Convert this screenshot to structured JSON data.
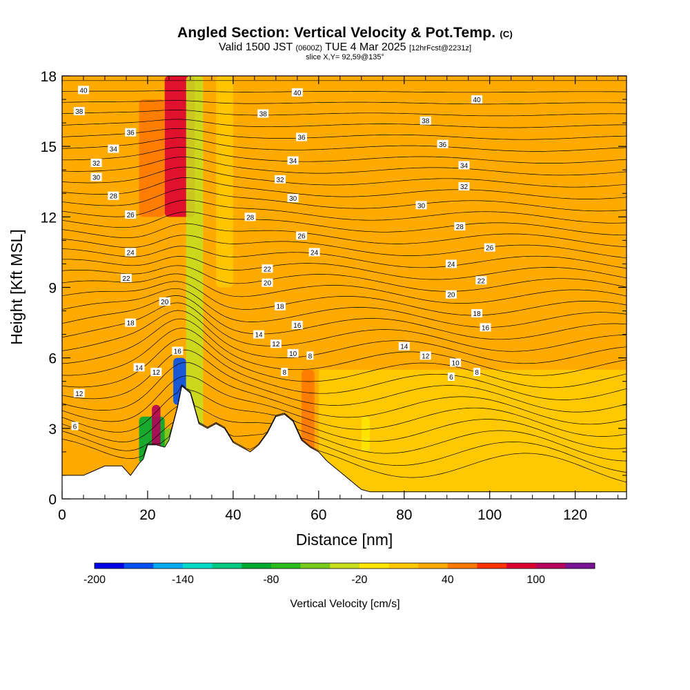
{
  "title": {
    "main": "Angled Section: Vertical Velocity & Pot.Temp.",
    "main_unit": "(C)",
    "valid_a": "Valid 1500 JST",
    "valid_b": "(0600Z)",
    "valid_c": "TUE 4 Mar 2025",
    "valid_d": "[12hrFcst@2231z]",
    "slice": "slice X,Y= 92,59@135°"
  },
  "chart_data": {
    "type": "heatmap",
    "xlabel": "Distance [nm]",
    "ylabel": "Height [Kft MSL]",
    "xlim": [
      0,
      132
    ],
    "ylim": [
      0,
      18
    ],
    "x_ticks": [
      "0",
      "20",
      "40",
      "60",
      "80",
      "100",
      "120"
    ],
    "y_ticks": [
      "0",
      "3",
      "6",
      "9",
      "12",
      "15",
      "18"
    ],
    "terrain": [
      [
        0,
        1.0
      ],
      [
        5,
        1.0
      ],
      [
        10,
        1.4
      ],
      [
        14,
        1.4
      ],
      [
        16,
        1.0
      ],
      [
        18,
        1.5
      ],
      [
        19,
        1.7
      ],
      [
        20,
        2.3
      ],
      [
        22,
        2.3
      ],
      [
        24,
        2.2
      ],
      [
        25,
        2.5
      ],
      [
        27,
        3.9
      ],
      [
        28,
        4.8
      ],
      [
        30,
        4.5
      ],
      [
        32,
        3.2
      ],
      [
        34,
        3.0
      ],
      [
        36,
        3.2
      ],
      [
        38,
        3.0
      ],
      [
        40,
        2.4
      ],
      [
        42,
        2.2
      ],
      [
        44,
        2.0
      ],
      [
        46,
        2.3
      ],
      [
        48,
        2.8
      ],
      [
        50,
        3.5
      ],
      [
        52,
        3.6
      ],
      [
        54,
        3.3
      ],
      [
        56,
        2.5
      ],
      [
        58,
        2.2
      ],
      [
        60,
        2.0
      ],
      [
        62,
        1.6
      ],
      [
        64,
        1.3
      ],
      [
        66,
        1.0
      ],
      [
        68,
        0.7
      ],
      [
        70,
        0.4
      ],
      [
        72,
        0.3
      ],
      [
        132,
        0.3
      ]
    ],
    "velocity_cells": [
      {
        "x0": 18,
        "x1": 24,
        "z0": 1.5,
        "z1": 3.5,
        "v": -100
      },
      {
        "x0": 24,
        "x1": 26,
        "z0": 1.5,
        "z1": 3.0,
        "v": -60
      },
      {
        "x0": 21,
        "x1": 23,
        "z0": 2.0,
        "z1": 4.0,
        "v": 110
      },
      {
        "x0": 26,
        "x1": 29,
        "z0": 4.0,
        "z1": 6.0,
        "v": -180
      },
      {
        "x0": 24,
        "x1": 31,
        "z0": 12,
        "z1": 18,
        "v": 80
      },
      {
        "x0": 18,
        "x1": 24,
        "z0": 12,
        "z1": 17,
        "v": 50
      },
      {
        "x0": 29,
        "x1": 33,
        "z0": 3,
        "z1": 18,
        "v": -30
      },
      {
        "x0": 56,
        "x1": 59,
        "z0": 2,
        "z1": 5.5,
        "v": 50
      },
      {
        "x0": 70,
        "x1": 72,
        "z0": 2,
        "z1": 3.5,
        "v": -20
      },
      {
        "x0": 36,
        "x1": 40,
        "z0": 9,
        "z1": 18,
        "v": 0
      }
    ],
    "velocity_levels": [
      -200,
      -180,
      -160,
      -140,
      -120,
      -100,
      -80,
      -60,
      -40,
      -20,
      0,
      20,
      40,
      60,
      80,
      100,
      120
    ],
    "colors": [
      "#0000e6",
      "#0050f0",
      "#00aaf5",
      "#00d8c8",
      "#00c882",
      "#00a832",
      "#2bbb1f",
      "#78c81e",
      "#c8dc1e",
      "#ffe600",
      "#ffc800",
      "#ffaa00",
      "#ff7800",
      "#ff3200",
      "#dc0032",
      "#b4005a",
      "#7a1496"
    ],
    "colorbar_ticks": [
      "-200",
      "-140",
      "-80",
      "-20",
      "40",
      "100"
    ],
    "colorbar_label": "Vertical Velocity [cm/s]",
    "theta_labels": [
      {
        "text": "40",
        "x": 5,
        "z": 17.4
      },
      {
        "text": "38",
        "x": 4,
        "z": 16.5
      },
      {
        "text": "36",
        "x": 16,
        "z": 15.6
      },
      {
        "text": "34",
        "x": 12,
        "z": 14.9
      },
      {
        "text": "32",
        "x": 8,
        "z": 14.3
      },
      {
        "text": "30",
        "x": 8,
        "z": 13.7
      },
      {
        "text": "28",
        "x": 12,
        "z": 12.9
      },
      {
        "text": "26",
        "x": 16,
        "z": 12.1
      },
      {
        "text": "24",
        "x": 16,
        "z": 10.5
      },
      {
        "text": "22",
        "x": 15,
        "z": 9.4
      },
      {
        "text": "20",
        "x": 24,
        "z": 8.4
      },
      {
        "text": "18",
        "x": 16,
        "z": 7.5
      },
      {
        "text": "16",
        "x": 27,
        "z": 6.3
      },
      {
        "text": "14",
        "x": 18,
        "z": 5.6
      },
      {
        "text": "12",
        "x": 22,
        "z": 5.4
      },
      {
        "text": "12",
        "x": 4,
        "z": 4.5
      },
      {
        "text": "6",
        "x": 3,
        "z": 3.1
      },
      {
        "text": "40",
        "x": 55,
        "z": 17.3
      },
      {
        "text": "38",
        "x": 47,
        "z": 16.4
      },
      {
        "text": "36",
        "x": 56,
        "z": 15.4
      },
      {
        "text": "34",
        "x": 54,
        "z": 14.4
      },
      {
        "text": "32",
        "x": 51,
        "z": 13.6
      },
      {
        "text": "30",
        "x": 54,
        "z": 12.8
      },
      {
        "text": "28",
        "x": 44,
        "z": 12.0
      },
      {
        "text": "26",
        "x": 56,
        "z": 11.2
      },
      {
        "text": "24",
        "x": 59,
        "z": 10.5
      },
      {
        "text": "22",
        "x": 48,
        "z": 9.8
      },
      {
        "text": "20",
        "x": 48,
        "z": 9.2
      },
      {
        "text": "18",
        "x": 51,
        "z": 8.2
      },
      {
        "text": "16",
        "x": 55,
        "z": 7.4
      },
      {
        "text": "14",
        "x": 46,
        "z": 7.0
      },
      {
        "text": "12",
        "x": 50,
        "z": 6.6
      },
      {
        "text": "10",
        "x": 54,
        "z": 6.2
      },
      {
        "text": "8",
        "x": 58,
        "z": 6.1
      },
      {
        "text": "8",
        "x": 52,
        "z": 5.4
      },
      {
        "text": "40",
        "x": 97,
        "z": 17.0
      },
      {
        "text": "38",
        "x": 85,
        "z": 16.1
      },
      {
        "text": "36",
        "x": 89,
        "z": 15.1
      },
      {
        "text": "34",
        "x": 94,
        "z": 14.2
      },
      {
        "text": "32",
        "x": 94,
        "z": 13.3
      },
      {
        "text": "30",
        "x": 84,
        "z": 12.5
      },
      {
        "text": "28",
        "x": 93,
        "z": 11.6
      },
      {
        "text": "26",
        "x": 100,
        "z": 10.7
      },
      {
        "text": "24",
        "x": 91,
        "z": 10.0
      },
      {
        "text": "22",
        "x": 98,
        "z": 9.3
      },
      {
        "text": "20",
        "x": 91,
        "z": 8.7
      },
      {
        "text": "18",
        "x": 97,
        "z": 7.9
      },
      {
        "text": "16",
        "x": 99,
        "z": 7.3
      },
      {
        "text": "14",
        "x": 80,
        "z": 6.5
      },
      {
        "text": "12",
        "x": 85,
        "z": 6.1
      },
      {
        "text": "10",
        "x": 92,
        "z": 5.8
      },
      {
        "text": "8",
        "x": 97,
        "z": 5.4
      },
      {
        "text": "6",
        "x": 91,
        "z": 5.2
      }
    ]
  }
}
